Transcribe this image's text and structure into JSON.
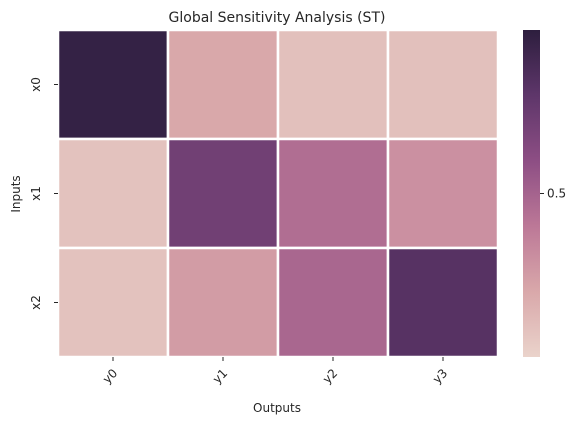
{
  "chart_data": {
    "type": "heatmap",
    "title": "Global Sensitivity Analysis (ST)",
    "xlabel": "Outputs",
    "ylabel": "Inputs",
    "x_categories": [
      "y0",
      "y1",
      "y2",
      "y3"
    ],
    "y_categories": [
      "x0",
      "x1",
      "x2"
    ],
    "values": [
      [
        0.97,
        0.2,
        0.09,
        0.09
      ],
      [
        0.08,
        0.72,
        0.45,
        0.3
      ],
      [
        0.08,
        0.25,
        0.48,
        0.83
      ]
    ],
    "colorbar": {
      "range": [
        0.0,
        1.0
      ],
      "ticks": [
        0.5
      ],
      "tick_labels": [
        "0.5"
      ],
      "colors": [
        "#ead3cb",
        "#d9a8aa",
        "#bc7897",
        "#8d4e84",
        "#5e366a",
        "#2d1e3e"
      ]
    }
  }
}
